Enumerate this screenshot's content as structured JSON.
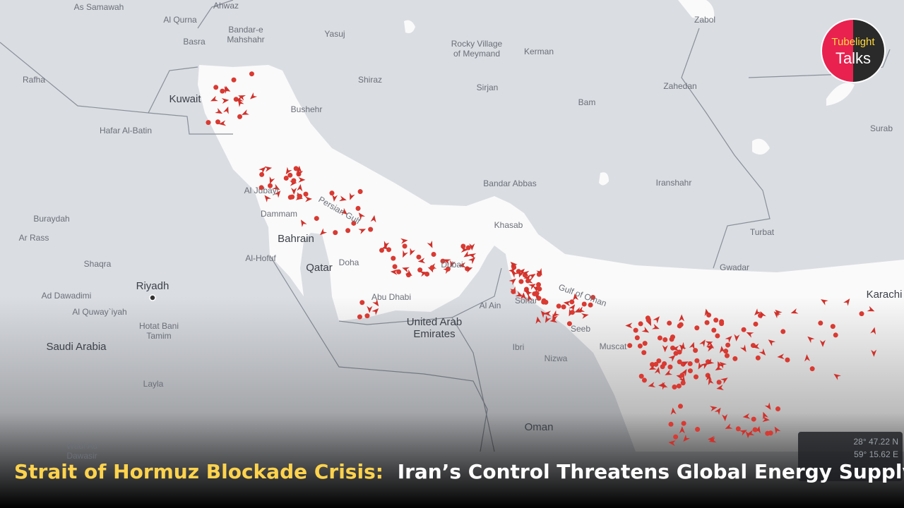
{
  "map": {
    "places": [
      "As Samawah",
      "Ahwaz",
      "Al Qurna",
      "Bandar-e",
      "Mahshahr",
      "Yasuj",
      "Rocky Village",
      "of Meymand",
      "Kerman",
      "Zabol",
      "Basra",
      "Rafha",
      "Kuwait",
      "Shiraz",
      "Sirjan",
      "Zahedan",
      "Bushehr",
      "Bam",
      "Hafar Al-Batin",
      "Surab",
      "Bandar Abbas",
      "Iranshahr",
      "Al Jubayl",
      "Dammam",
      "Buraydah",
      "Khasab",
      "Turbat",
      "Ar Rass",
      "Bahrain",
      "Al-Hofuf",
      "Doha",
      "Shaqra",
      "Qatar",
      "Dubai",
      "Gwadar",
      "Riyadh",
      "Ad Dawadimi",
      "Abu Dhabi",
      "Sohar",
      "Karachi",
      "Al Ain",
      "Al Quway`iyah",
      "United Arab",
      "Emirates",
      "Hotat Bani",
      "Tamim",
      "Seeb",
      "Muscat",
      "Saudi Arabia",
      "Ibri",
      "Nizwa",
      "Layla",
      "Oman",
      "Wadi Ad",
      "Dawasir"
    ],
    "water": [
      "Persian Gulf",
      "Gulf of Oman"
    ],
    "coordinates": [
      "28° 47.22 N",
      "59° 15.62 E"
    ]
  },
  "logo": {
    "line1": "Tubelight",
    "line2": "Talks"
  },
  "caption": {
    "highlight": "Strait of Hormuz Blockade Crisis:",
    "rest": "Iran’s Control Threatens Global Energy Supply"
  }
}
